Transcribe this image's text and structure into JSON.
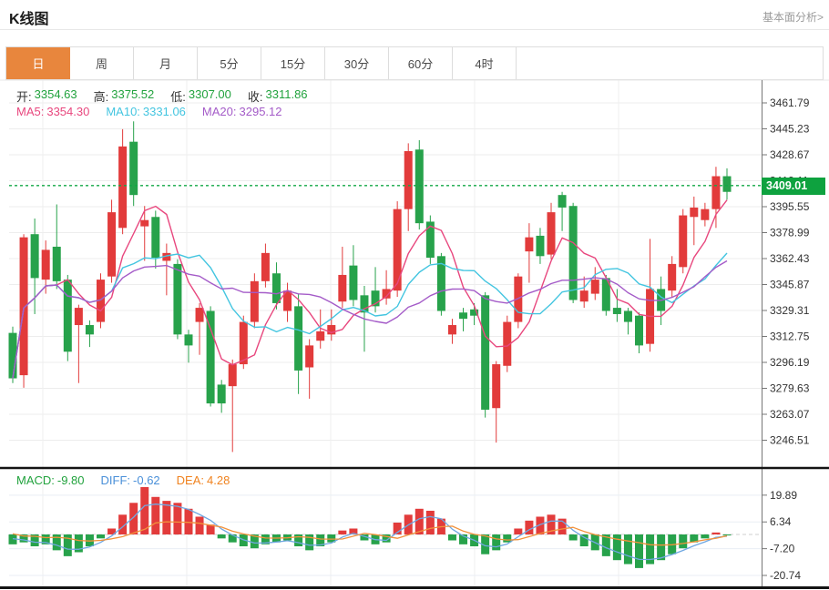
{
  "page": {
    "title": "K线图",
    "link_label": "基本面分析>"
  },
  "tabs": {
    "items": [
      "日",
      "周",
      "月",
      "5分",
      "15分",
      "30分",
      "60分",
      "4时"
    ],
    "active": "日"
  },
  "ohlc_legend": {
    "open_label": "开:",
    "open": "3354.63",
    "high_label": "高:",
    "high": "3375.52",
    "low_label": "低:",
    "low": "3307.00",
    "close_label": "收:",
    "close": "3311.86"
  },
  "ma_legend": [
    {
      "label": "MA5:",
      "value": "3354.30"
    },
    {
      "label": "MA10:",
      "value": "3331.06"
    },
    {
      "label": "MA20:",
      "value": "3295.12"
    }
  ],
  "macd_legend": [
    {
      "label": "MACD:",
      "value": "-9.80"
    },
    {
      "label": "DIFF:",
      "value": "-0.62"
    },
    {
      "label": "DEA:",
      "value": "4.28"
    }
  ],
  "chart_data": {
    "type": "candlestick",
    "title": "K线图",
    "price_ticks": [
      3461.79,
      3445.23,
      3428.67,
      3412.11,
      3395.55,
      3378.99,
      3362.43,
      3345.87,
      3329.31,
      3312.75,
      3296.19,
      3279.63,
      3263.07,
      3246.51
    ],
    "current_price": 3409.01,
    "candles": [
      [
        3315,
        3319,
        3283,
        3286
      ],
      [
        3288,
        3378,
        3280,
        3376
      ],
      [
        3378,
        3388,
        3327,
        3350
      ],
      [
        3349,
        3374,
        3340,
        3368
      ],
      [
        3370,
        3397,
        3343,
        3348
      ],
      [
        3349,
        3352,
        3297,
        3303
      ],
      [
        3320,
        3333,
        3283,
        3331
      ],
      [
        3320,
        3323,
        3306,
        3314
      ],
      [
        3322,
        3353,
        3318,
        3349
      ],
      [
        3351,
        3400,
        3347,
        3392
      ],
      [
        3382,
        3445,
        3378,
        3434
      ],
      [
        3437,
        3450,
        3396,
        3403
      ],
      [
        3383,
        3396,
        3361,
        3387
      ],
      [
        3389,
        3393,
        3356,
        3363
      ],
      [
        3361,
        3372,
        3339,
        3366
      ],
      [
        3359,
        3362,
        3311,
        3314
      ],
      [
        3314,
        3317,
        3296,
        3307
      ],
      [
        3322,
        3334,
        3301,
        3331
      ],
      [
        3329,
        3332,
        3268,
        3270
      ],
      [
        3282,
        3285,
        3264,
        3270
      ],
      [
        3281,
        3298,
        3239,
        3295
      ],
      [
        3295,
        3326,
        3292,
        3322
      ],
      [
        3322,
        3353,
        3318,
        3348
      ],
      [
        3348,
        3372,
        3344,
        3366
      ],
      [
        3353,
        3360,
        3330,
        3334
      ],
      [
        3329,
        3347,
        3322,
        3342
      ],
      [
        3332,
        3340,
        3276,
        3291
      ],
      [
        3293,
        3311,
        3273,
        3307
      ],
      [
        3310,
        3330,
        3305,
        3316
      ],
      [
        3314,
        3330,
        3310,
        3320
      ],
      [
        3335,
        3370,
        3331,
        3352
      ],
      [
        3358,
        3371,
        3332,
        3336
      ],
      [
        3339,
        3345,
        3303,
        3328
      ],
      [
        3342,
        3357,
        3328,
        3332
      ],
      [
        3337,
        3355,
        3333,
        3343
      ],
      [
        3342,
        3399,
        3338,
        3394
      ],
      [
        3394,
        3436,
        3380,
        3431
      ],
      [
        3432,
        3438,
        3381,
        3385
      ],
      [
        3386,
        3390,
        3359,
        3363
      ],
      [
        3364,
        3366,
        3326,
        3329
      ],
      [
        3314,
        3324,
        3308,
        3320
      ],
      [
        3328,
        3331,
        3316,
        3324
      ],
      [
        3330,
        3334,
        3320,
        3326
      ],
      [
        3339,
        3341,
        3261,
        3266
      ],
      [
        3267,
        3297,
        3245,
        3295
      ],
      [
        3294,
        3326,
        3290,
        3322
      ],
      [
        3322,
        3353,
        3318,
        3351
      ],
      [
        3367,
        3385,
        3347,
        3376
      ],
      [
        3377,
        3382,
        3359,
        3364
      ],
      [
        3365,
        3398,
        3362,
        3392
      ],
      [
        3403,
        3405,
        3380,
        3395
      ],
      [
        3396,
        3398,
        3334,
        3336
      ],
      [
        3335,
        3351,
        3331,
        3342
      ],
      [
        3340,
        3357,
        3336,
        3349
      ],
      [
        3350,
        3352,
        3326,
        3329
      ],
      [
        3331,
        3343,
        3322,
        3327
      ],
      [
        3329,
        3331,
        3314,
        3322
      ],
      [
        3326,
        3328,
        3302,
        3307
      ],
      [
        3308,
        3375,
        3303,
        3343
      ],
      [
        3343,
        3351,
        3320,
        3329
      ],
      [
        3342,
        3364,
        3338,
        3359
      ],
      [
        3357,
        3394,
        3353,
        3390
      ],
      [
        3389,
        3402,
        3371,
        3395
      ],
      [
        3387,
        3398,
        3383,
        3394
      ],
      [
        3394,
        3421,
        3382,
        3415
      ],
      [
        3415,
        3420,
        3400,
        3405
      ]
    ],
    "ma_periods": [
      5,
      10,
      20
    ],
    "macd": {
      "ticks": [
        19.89,
        6.34,
        -7.2,
        -20.74
      ],
      "hist": [
        -5,
        -4,
        -6,
        -5,
        -8,
        -11,
        -9,
        -6,
        -2,
        3,
        10,
        16,
        24,
        19,
        17,
        16,
        13,
        9,
        5,
        -2,
        -4,
        -6,
        -7,
        -5,
        -4,
        -3,
        -6,
        -8,
        -6,
        -4,
        2,
        3,
        -3,
        -5,
        -4,
        6,
        10,
        13,
        12,
        8,
        -3,
        -5,
        -6,
        -10,
        -8,
        -4,
        3,
        7,
        9,
        10,
        8,
        -3,
        -6,
        -8,
        -11,
        -13,
        -15,
        -17,
        -15,
        -13,
        -10,
        -7,
        -4,
        -2,
        1,
        -0.5
      ]
    },
    "colors": {
      "up": "#e23b3b",
      "down": "#27a24b",
      "ma5": "#e8477e",
      "ma10": "#43c5e0",
      "ma20": "#a45bc8",
      "diff_line": "#6fa7e2",
      "dea_line": "#f2923c",
      "price_line": "#12a845",
      "badge_bg": "#0ea23f",
      "ohlc_value": "#21a23d",
      "macd_text": "#21a23d",
      "diff_text": "#4a90d9",
      "dea_text": "#f0821e",
      "tab_active": "#e8863d",
      "axis_text": "#333333"
    }
  }
}
